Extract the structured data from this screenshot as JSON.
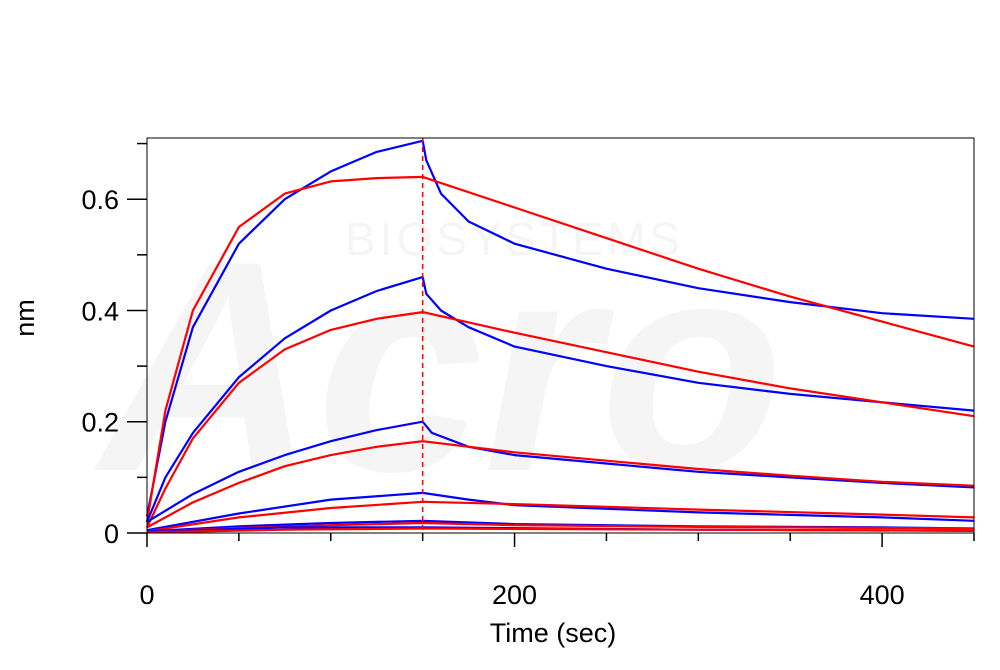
{
  "chart_data": {
    "type": "line",
    "xlabel": "Time (sec)",
    "ylabel": "nm",
    "xlim": [
      0,
      450
    ],
    "ylim": [
      0,
      0.71
    ],
    "x_ticks": [
      0,
      200,
      400
    ],
    "x_tick_labels": [
      "0",
      "200",
      "400"
    ],
    "y_ticks": [
      0,
      0.2,
      0.4,
      0.6
    ],
    "y_tick_labels": [
      "0",
      "0.2",
      "0.4",
      "0.6"
    ],
    "grid": false,
    "legend": "none",
    "watermark": [
      "Acro",
      "BIOSYSTEMS"
    ],
    "vertical_marker": {
      "x": 150,
      "style": "dashed",
      "color": "#ff0000"
    },
    "colors": {
      "measured": "#0000ff",
      "fit": "#ff0000",
      "axis": "#000000"
    },
    "series": [
      {
        "role": "measured",
        "points": [
          [
            0,
            0.03
          ],
          [
            10,
            0.2
          ],
          [
            25,
            0.37
          ],
          [
            50,
            0.52
          ],
          [
            75,
            0.6
          ],
          [
            100,
            0.65
          ],
          [
            125,
            0.685
          ],
          [
            150,
            0.705
          ],
          [
            152,
            0.67
          ],
          [
            160,
            0.61
          ],
          [
            175,
            0.56
          ],
          [
            200,
            0.52
          ],
          [
            250,
            0.475
          ],
          [
            300,
            0.44
          ],
          [
            350,
            0.415
          ],
          [
            400,
            0.395
          ],
          [
            450,
            0.385
          ]
        ]
      },
      {
        "role": "fit",
        "points": [
          [
            0,
            0.02
          ],
          [
            10,
            0.22
          ],
          [
            25,
            0.4
          ],
          [
            50,
            0.55
          ],
          [
            75,
            0.61
          ],
          [
            100,
            0.632
          ],
          [
            125,
            0.638
          ],
          [
            150,
            0.64
          ],
          [
            200,
            0.585
          ],
          [
            250,
            0.53
          ],
          [
            300,
            0.475
          ],
          [
            350,
            0.425
          ],
          [
            400,
            0.38
          ],
          [
            450,
            0.335
          ]
        ]
      },
      {
        "role": "measured",
        "points": [
          [
            0,
            0.02
          ],
          [
            10,
            0.1
          ],
          [
            25,
            0.18
          ],
          [
            50,
            0.28
          ],
          [
            75,
            0.35
          ],
          [
            100,
            0.4
          ],
          [
            125,
            0.435
          ],
          [
            150,
            0.46
          ],
          [
            152,
            0.43
          ],
          [
            160,
            0.4
          ],
          [
            175,
            0.37
          ],
          [
            200,
            0.335
          ],
          [
            250,
            0.3
          ],
          [
            300,
            0.27
          ],
          [
            350,
            0.25
          ],
          [
            400,
            0.235
          ],
          [
            450,
            0.22
          ]
        ]
      },
      {
        "role": "fit",
        "points": [
          [
            0,
            0.01
          ],
          [
            10,
            0.08
          ],
          [
            25,
            0.17
          ],
          [
            50,
            0.27
          ],
          [
            75,
            0.33
          ],
          [
            100,
            0.365
          ],
          [
            125,
            0.385
          ],
          [
            150,
            0.397
          ],
          [
            200,
            0.36
          ],
          [
            250,
            0.325
          ],
          [
            300,
            0.29
          ],
          [
            350,
            0.26
          ],
          [
            400,
            0.235
          ],
          [
            450,
            0.21
          ]
        ]
      },
      {
        "role": "measured",
        "points": [
          [
            0,
            0.02
          ],
          [
            25,
            0.07
          ],
          [
            50,
            0.11
          ],
          [
            75,
            0.14
          ],
          [
            100,
            0.165
          ],
          [
            125,
            0.185
          ],
          [
            150,
            0.2
          ],
          [
            155,
            0.18
          ],
          [
            175,
            0.155
          ],
          [
            200,
            0.14
          ],
          [
            250,
            0.125
          ],
          [
            300,
            0.11
          ],
          [
            350,
            0.1
          ],
          [
            400,
            0.09
          ],
          [
            450,
            0.082
          ]
        ]
      },
      {
        "role": "fit",
        "points": [
          [
            0,
            0.01
          ],
          [
            25,
            0.055
          ],
          [
            50,
            0.09
          ],
          [
            75,
            0.12
          ],
          [
            100,
            0.14
          ],
          [
            125,
            0.155
          ],
          [
            150,
            0.165
          ],
          [
            200,
            0.145
          ],
          [
            250,
            0.13
          ],
          [
            300,
            0.115
          ],
          [
            350,
            0.103
          ],
          [
            400,
            0.092
          ],
          [
            450,
            0.085
          ]
        ]
      },
      {
        "role": "measured",
        "points": [
          [
            0,
            0.005
          ],
          [
            50,
            0.035
          ],
          [
            100,
            0.06
          ],
          [
            150,
            0.072
          ],
          [
            175,
            0.06
          ],
          [
            200,
            0.05
          ],
          [
            300,
            0.037
          ],
          [
            400,
            0.028
          ],
          [
            450,
            0.022
          ]
        ]
      },
      {
        "role": "fit",
        "points": [
          [
            0,
            0.003
          ],
          [
            50,
            0.028
          ],
          [
            100,
            0.045
          ],
          [
            150,
            0.056
          ],
          [
            200,
            0.052
          ],
          [
            300,
            0.042
          ],
          [
            400,
            0.033
          ],
          [
            450,
            0.028
          ]
        ]
      },
      {
        "role": "measured",
        "points": [
          [
            0,
            0.003
          ],
          [
            50,
            0.012
          ],
          [
            100,
            0.018
          ],
          [
            150,
            0.022
          ],
          [
            200,
            0.016
          ],
          [
            300,
            0.012
          ],
          [
            400,
            0.01
          ],
          [
            450,
            0.008
          ]
        ]
      },
      {
        "role": "fit",
        "points": [
          [
            0,
            0.002
          ],
          [
            50,
            0.009
          ],
          [
            100,
            0.014
          ],
          [
            150,
            0.018
          ],
          [
            200,
            0.014
          ],
          [
            300,
            0.011
          ],
          [
            400,
            0.009
          ],
          [
            450,
            0.008
          ]
        ]
      },
      {
        "role": "measured",
        "points": [
          [
            0,
            0.002
          ],
          [
            75,
            0.01
          ],
          [
            150,
            0.01
          ],
          [
            300,
            0.006
          ],
          [
            450,
            0.004
          ]
        ]
      },
      {
        "role": "fit",
        "points": [
          [
            0,
            0.001
          ],
          [
            75,
            0.006
          ],
          [
            150,
            0.008
          ],
          [
            300,
            0.006
          ],
          [
            450,
            0.004
          ]
        ]
      }
    ]
  }
}
